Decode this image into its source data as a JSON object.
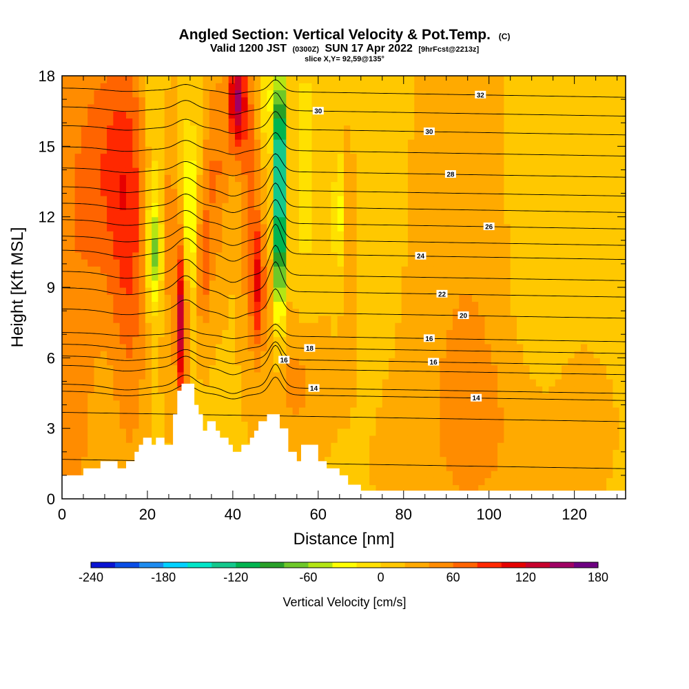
{
  "chart_data": {
    "type": "heatmap",
    "title": "Angled Section: Vertical Velocity & Pot.Temp.",
    "title_mark": "(C)",
    "subtitle_prefix": "Valid 1200 JST",
    "subtitle_utc": "(0300Z)",
    "subtitle_date": "SUN 17 Apr 2022",
    "subtitle_fcst": "[9hrFcst@2213z]",
    "slice": "slice X,Y= 92,59@135°",
    "xlabel": "Distance [nm]",
    "ylabel": "Height [Kft MSL]",
    "xlim": [
      0,
      132
    ],
    "ylim": [
      0,
      18
    ],
    "xticks": [
      0,
      20,
      40,
      60,
      80,
      100,
      120
    ],
    "yticks": [
      0,
      3,
      6,
      9,
      12,
      15,
      18
    ],
    "colorbar": {
      "label": "Vertical Velocity [cm/s]",
      "ticks": [
        -240,
        -180,
        -120,
        -60,
        0,
        60,
        120,
        180
      ],
      "colors": [
        "#0a14d2",
        "#0a4ee6",
        "#1e8cf0",
        "#00d2ff",
        "#00e6c8",
        "#14c88c",
        "#00b450",
        "#28a028",
        "#6ec828",
        "#b4e614",
        "#ffff00",
        "#ffe100",
        "#ffc800",
        "#ffaa00",
        "#ff8c00",
        "#ff6400",
        "#ff2800",
        "#e60000",
        "#c8002d",
        "#a00064",
        "#6e0082"
      ]
    },
    "terrain": [
      [
        0,
        1.0
      ],
      [
        5,
        1.0
      ],
      [
        5,
        1.3
      ],
      [
        9,
        1.3
      ],
      [
        9,
        1.6
      ],
      [
        13,
        1.6
      ],
      [
        13,
        1.3
      ],
      [
        15,
        1.3
      ],
      [
        15,
        1.6
      ],
      [
        17,
        1.6
      ],
      [
        17,
        2.0
      ],
      [
        18,
        2.0
      ],
      [
        18,
        2.3
      ],
      [
        19,
        2.3
      ],
      [
        19,
        2.6
      ],
      [
        21,
        2.6
      ],
      [
        21,
        2.3
      ],
      [
        22,
        2.3
      ],
      [
        22,
        2.6
      ],
      [
        24,
        2.6
      ],
      [
        24,
        2.3
      ],
      [
        26,
        2.3
      ],
      [
        26,
        3.6
      ],
      [
        27,
        3.6
      ],
      [
        27,
        4.6
      ],
      [
        28,
        4.6
      ],
      [
        28,
        4.9
      ],
      [
        31,
        4.9
      ],
      [
        31,
        4.0
      ],
      [
        32,
        4.0
      ],
      [
        32,
        3.6
      ],
      [
        33,
        3.6
      ],
      [
        33,
        2.9
      ],
      [
        34,
        2.9
      ],
      [
        34,
        3.3
      ],
      [
        36,
        3.3
      ],
      [
        36,
        2.9
      ],
      [
        37,
        2.9
      ],
      [
        37,
        2.6
      ],
      [
        39,
        2.6
      ],
      [
        39,
        2.3
      ],
      [
        40,
        2.3
      ],
      [
        40,
        2.0
      ],
      [
        42,
        2.0
      ],
      [
        42,
        2.3
      ],
      [
        44,
        2.3
      ],
      [
        44,
        2.6
      ],
      [
        45,
        2.6
      ],
      [
        45,
        2.9
      ],
      [
        46,
        2.9
      ],
      [
        46,
        3.3
      ],
      [
        48,
        3.3
      ],
      [
        48,
        3.6
      ],
      [
        51,
        3.6
      ],
      [
        51,
        3.0
      ],
      [
        53,
        3.0
      ],
      [
        53,
        2.0
      ],
      [
        55,
        2.0
      ],
      [
        55,
        1.6
      ],
      [
        56,
        1.6
      ],
      [
        56,
        2.3
      ],
      [
        60,
        2.3
      ],
      [
        60,
        1.6
      ],
      [
        62,
        1.6
      ],
      [
        62,
        1.3
      ],
      [
        65,
        1.3
      ],
      [
        65,
        1.0
      ],
      [
        67,
        1.0
      ],
      [
        67,
        0.6
      ],
      [
        70,
        0.6
      ],
      [
        70,
        0.35
      ],
      [
        132,
        0.35
      ]
    ],
    "w_field": [
      {
        "x": 2,
        "z": 9,
        "w": 35,
        "sx": 5,
        "sz": 10
      },
      {
        "x": 12,
        "z": 14,
        "w": 55,
        "sx": 5,
        "sz": 4
      },
      {
        "x": 16,
        "z": 10,
        "w": 45,
        "sx": 3,
        "sz": 6
      },
      {
        "x": 22,
        "z": 14,
        "w": -25,
        "sx": 2,
        "sz": 5
      },
      {
        "x": 21.5,
        "z": 10.5,
        "w": -80,
        "sx": 1.3,
        "sz": 1.6
      },
      {
        "x": 24,
        "z": 16,
        "w": -10,
        "sx": 4,
        "sz": 2
      },
      {
        "x": 25,
        "z": 12,
        "w": 40,
        "sx": 1.5,
        "sz": 4
      },
      {
        "x": 28,
        "z": 7.5,
        "w": 120,
        "sx": 0.9,
        "sz": 2.5
      },
      {
        "x": 30,
        "z": 12,
        "w": -70,
        "sx": 1.3,
        "sz": 2.5
      },
      {
        "x": 33,
        "z": 10,
        "w": 55,
        "sx": 1.2,
        "sz": 2
      },
      {
        "x": 36,
        "z": 14,
        "w": 45,
        "sx": 2,
        "sz": 3
      },
      {
        "x": 41,
        "z": 17,
        "w": 120,
        "sx": 1.5,
        "sz": 1.6
      },
      {
        "x": 44,
        "z": 13,
        "w": 50,
        "sx": 1.5,
        "sz": 4
      },
      {
        "x": 46,
        "z": 9,
        "w": 75,
        "sx": 1.2,
        "sz": 2
      },
      {
        "x": 48,
        "z": 17,
        "w": -55,
        "sx": 0.8,
        "sz": 1.5
      },
      {
        "x": 51,
        "z": 12,
        "w": -200,
        "sx": 0.8,
        "sz": 3
      },
      {
        "x": 51,
        "z": 16,
        "w": -100,
        "sx": 0.9,
        "sz": 2
      },
      {
        "x": 55,
        "z": 5,
        "w": 30,
        "sx": 4,
        "sz": 2
      },
      {
        "x": 57,
        "z": 14,
        "w": -25,
        "sx": 2,
        "sz": 5
      },
      {
        "x": 65,
        "z": 12,
        "w": -55,
        "sx": 1,
        "sz": 2
      },
      {
        "x": 67,
        "z": 11,
        "w": 30,
        "sx": 1.5,
        "sz": 3
      },
      {
        "x": 73,
        "z": 14,
        "w": -15,
        "sx": 4,
        "sz": 5
      },
      {
        "x": 95,
        "z": 8,
        "w": 20,
        "sx": 8,
        "sz": 8
      },
      {
        "x": 110,
        "z": 10,
        "w": -15,
        "sx": 5,
        "sz": 6
      },
      {
        "x": 100,
        "z": 3,
        "w": 15,
        "sx": 15,
        "sz": 3
      }
    ],
    "w_background": 18,
    "theta_levels": [
      {
        "z0": 1.5,
        "amp": 0,
        "label": "",
        "lx": 0
      },
      {
        "z0": 3.5,
        "amp": 0,
        "label": "",
        "lx": 0
      },
      {
        "z0": 4.4,
        "amp": 0.3,
        "label": "14",
        "lx": 97
      },
      {
        "z0": 4.7,
        "amp": 0.4,
        "label": "14",
        "lx": 59
      },
      {
        "z0": 5.5,
        "amp": 0.4,
        "label": "16",
        "lx": 52
      },
      {
        "z0": 5.9,
        "amp": 0.3,
        "label": "16",
        "lx": 87
      },
      {
        "z0": 6.4,
        "amp": 0.3,
        "label": "18",
        "lx": 58
      },
      {
        "z0": 6.9,
        "amp": 0.2,
        "label": "16",
        "lx": 86
      },
      {
        "z0": 7.9,
        "amp": 0.4,
        "label": "20",
        "lx": 94
      },
      {
        "z0": 8.8,
        "amp": 0.5,
        "label": "22",
        "lx": 89
      },
      {
        "z0": 9.5,
        "amp": 0.5,
        "label": "",
        "lx": 0
      },
      {
        "z0": 10.4,
        "amp": 0.5,
        "label": "24",
        "lx": 84
      },
      {
        "z0": 11.0,
        "amp": 0.4,
        "label": "",
        "lx": 0
      },
      {
        "z0": 11.7,
        "amp": 0.4,
        "label": "26",
        "lx": 100
      },
      {
        "z0": 12.4,
        "amp": 0.4,
        "label": "",
        "lx": 0
      },
      {
        "z0": 13.1,
        "amp": 0.4,
        "label": "",
        "lx": 0
      },
      {
        "z0": 13.9,
        "amp": 0.3,
        "label": "28",
        "lx": 91
      },
      {
        "z0": 14.8,
        "amp": 0.3,
        "label": "",
        "lx": 0
      },
      {
        "z0": 15.7,
        "amp": 0.3,
        "label": "30",
        "lx": 86
      },
      {
        "z0": 16.5,
        "amp": 0.3,
        "label": "30",
        "lx": 60
      },
      {
        "z0": 17.3,
        "amp": 0.2,
        "label": "32",
        "lx": 98
      }
    ]
  }
}
